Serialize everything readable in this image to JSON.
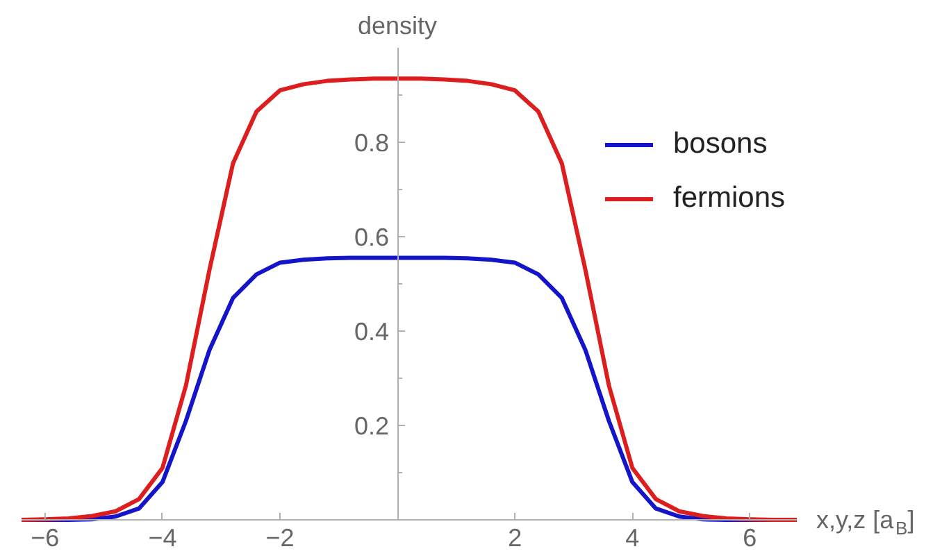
{
  "chart_data": {
    "type": "line",
    "xlabel": "x,y,z [a$_{B}$]",
    "ylabel": "density",
    "x": [
      -6.4,
      -6.0,
      -5.6,
      -5.2,
      -4.8,
      -4.4,
      -4.0,
      -3.6,
      -3.2,
      -2.8,
      -2.4,
      -2.0,
      -1.6,
      -1.2,
      -0.8,
      -0.4,
      0,
      0.4,
      0.8,
      1.2,
      1.6,
      2.0,
      2.4,
      2.8,
      3.2,
      3.6,
      4.0,
      4.4,
      4.8,
      5.2,
      5.6,
      6.0,
      6.4,
      6.8
    ],
    "series": [
      {
        "name": "bosons",
        "color": "#1414c8",
        "values": [
          0,
          0,
          0,
          0.001,
          0.007,
          0.024,
          0.08,
          0.21,
          0.36,
          0.47,
          0.52,
          0.545,
          0.551,
          0.554,
          0.555,
          0.555,
          0.555,
          0.555,
          0.555,
          0.554,
          0.551,
          0.545,
          0.52,
          0.47,
          0.36,
          0.21,
          0.08,
          0.024,
          0.007,
          0.001,
          0,
          0,
          0,
          0
        ]
      },
      {
        "name": "fermions",
        "color": "#dc1e1e",
        "values": [
          0,
          0.001,
          0.003,
          0.008,
          0.018,
          0.044,
          0.11,
          0.285,
          0.53,
          0.755,
          0.865,
          0.91,
          0.923,
          0.93,
          0.933,
          0.935,
          0.935,
          0.935,
          0.933,
          0.93,
          0.923,
          0.91,
          0.865,
          0.755,
          0.53,
          0.285,
          0.11,
          0.044,
          0.018,
          0.008,
          0.003,
          0.001,
          0,
          0
        ]
      }
    ],
    "xlim": [
      -6.4,
      6.8
    ],
    "ylim": [
      0,
      1.0
    ],
    "xticks": [
      -6,
      -4,
      -2,
      2,
      4,
      6
    ],
    "yticks": [
      {
        "value": 0.1,
        "label": null
      },
      0.2,
      {
        "value": 0.3,
        "label": null
      },
      0.4,
      {
        "value": 0.5,
        "label": null
      },
      0.6,
      {
        "value": 0.7,
        "label": null
      },
      0.8,
      {
        "value": 0.9,
        "label": null
      }
    ],
    "grid": false,
    "legend": "top right"
  }
}
